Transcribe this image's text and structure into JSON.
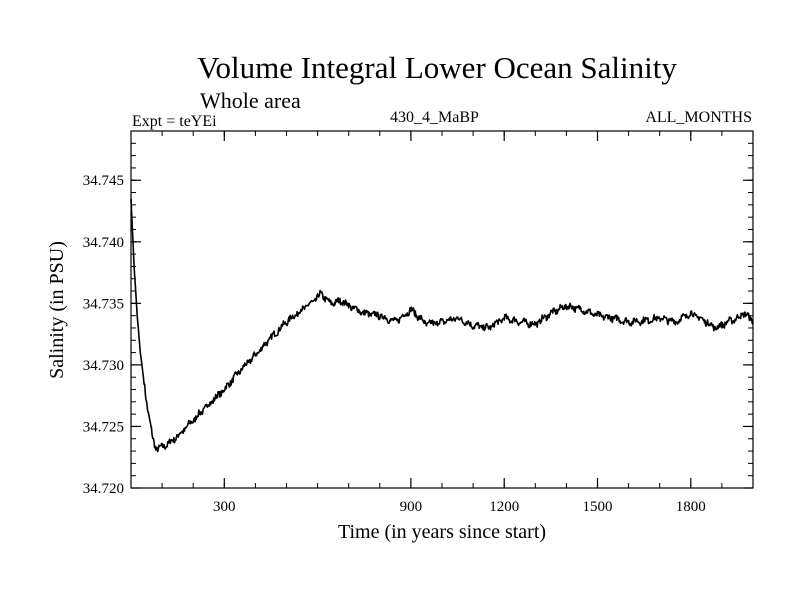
{
  "header": {
    "title": "Volume Integral Lower Ocean Salinity",
    "subtitle": "Whole area",
    "expt_label": "Expt = teYEi",
    "run_label": "430_4_MaBP",
    "months_label": "ALL_MONTHS"
  },
  "chart_data": {
    "type": "line",
    "title": "Volume Integral Lower Ocean Salinity",
    "subtitle": "Whole area",
    "xlabel": "Time (in years since start)",
    "ylabel": "Salinity (in PSU)",
    "xlim": [
      0,
      2000
    ],
    "ylim": [
      34.72,
      34.749
    ],
    "xticks": [
      300,
      900,
      1200,
      1500,
      1800
    ],
    "xtick_labels": [
      "300",
      "900",
      "1200",
      "1500",
      "1800"
    ],
    "xminor_step": 100,
    "yticks": [
      34.72,
      34.725,
      34.73,
      34.735,
      34.74,
      34.745
    ],
    "ytick_labels": [
      "34.720",
      "34.725",
      "34.730",
      "34.735",
      "34.740",
      "34.745"
    ],
    "yminor_step": 0.001,
    "grid": false,
    "series": [
      {
        "name": "salinity",
        "x": [
          0,
          10,
          20,
          30,
          50,
          70,
          80,
          100,
          120,
          150,
          200,
          250,
          300,
          350,
          400,
          450,
          500,
          550,
          590,
          610,
          640,
          680,
          700,
          750,
          800,
          850,
          900,
          950,
          1000,
          1050,
          1100,
          1150,
          1200,
          1250,
          1300,
          1350,
          1400,
          1450,
          1500,
          1550,
          1600,
          1650,
          1700,
          1750,
          1800,
          1850,
          1880,
          1920,
          1950,
          1970,
          2000
        ],
        "y": [
          34.7435,
          34.738,
          34.734,
          34.731,
          34.727,
          34.724,
          34.7232,
          34.7233,
          34.7236,
          34.7242,
          34.7255,
          34.7268,
          34.728,
          34.7295,
          34.7308,
          34.7322,
          34.7335,
          34.7345,
          34.7352,
          34.7358,
          34.735,
          34.7352,
          34.7348,
          34.7342,
          34.734,
          34.7335,
          34.7345,
          34.7333,
          34.7335,
          34.7338,
          34.7332,
          34.733,
          34.7338,
          34.7335,
          34.7333,
          34.7342,
          34.7348,
          34.7345,
          34.734,
          34.7338,
          34.7335,
          34.7336,
          34.7338,
          34.7335,
          34.7342,
          34.7335,
          34.733,
          34.7335,
          34.7338,
          34.7342,
          34.7336
        ]
      }
    ]
  }
}
